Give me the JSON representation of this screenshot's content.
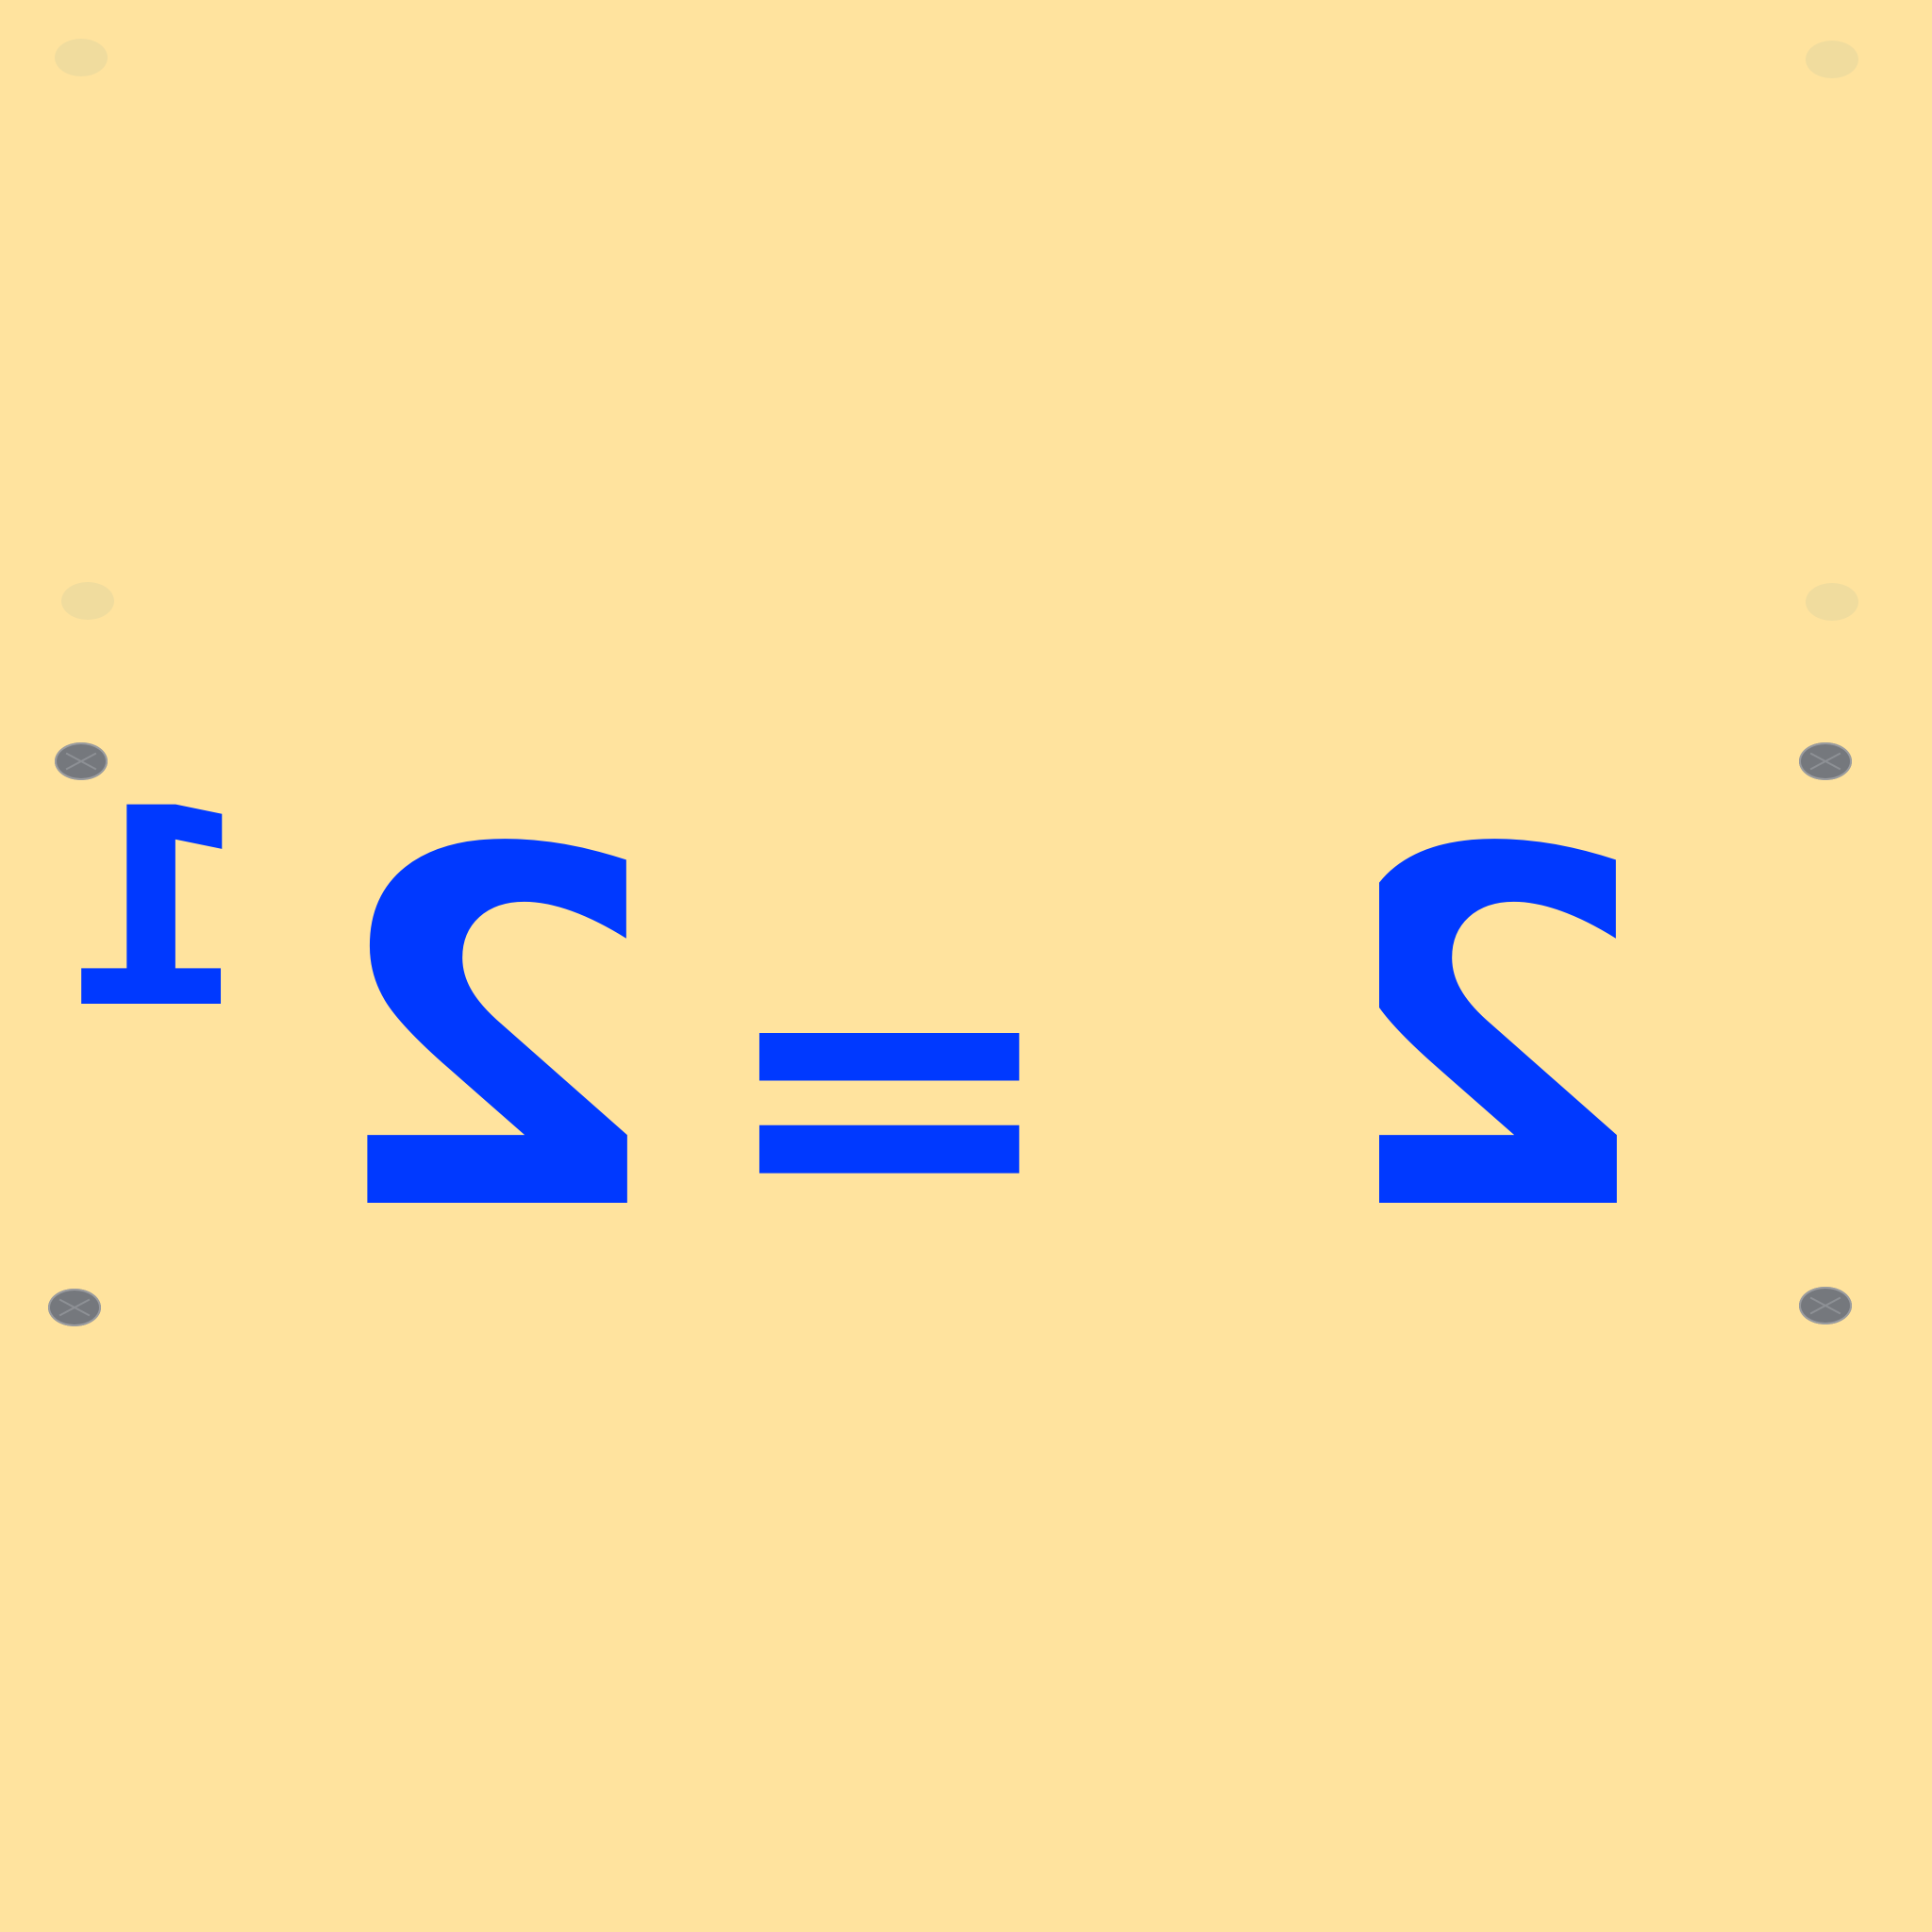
{
  "background": "#ffe39e",
  "ink": "#0039ff",
  "equation": {
    "base": "2",
    "exponent": "1",
    "equals": "=",
    "result": "2"
  },
  "orientation": "mirrored",
  "decor": {
    "dark_screw_icon": "screw-icon",
    "faint_screw_icon": "screw-hole-icon"
  }
}
